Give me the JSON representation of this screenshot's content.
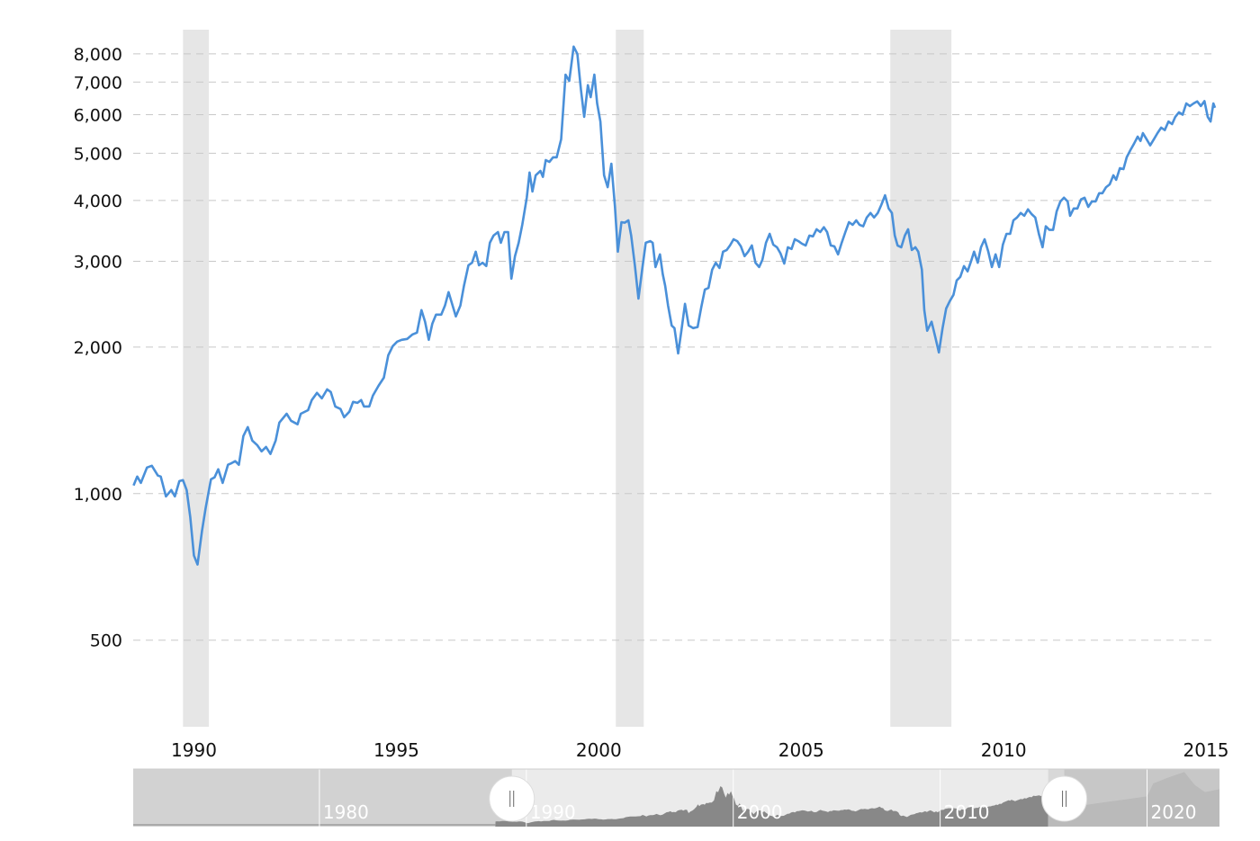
{
  "chart_data": {
    "type": "line",
    "title": "",
    "xlabel": "",
    "ylabel": "",
    "y_scale": "log",
    "xlim": [
      1988.5,
      2015.22
    ],
    "ylim": [
      332,
      8970
    ],
    "grid": {
      "horizontal": true,
      "style": "dashed"
    },
    "y_ticks": [
      500,
      1000,
      2000,
      3000,
      4000,
      5000,
      6000,
      7000,
      8000
    ],
    "y_tick_labels": [
      "500",
      "1,000",
      "2,000",
      "3,000",
      "4,000",
      "5,000",
      "6,000",
      "7,000",
      "8,000"
    ],
    "x_ticks": [
      1990,
      1995,
      2000,
      2005,
      2010,
      2015
    ],
    "x_tick_labels": [
      "1990",
      "1995",
      "2000",
      "2005",
      "2010",
      "2015"
    ],
    "line_color": "#4a90d9",
    "band_color": "#e6e6e6",
    "shaded_bands": [
      [
        1989.73,
        1990.37
      ],
      [
        2000.42,
        2001.11
      ],
      [
        2007.2,
        2008.71
      ]
    ],
    "series": [
      {
        "points": [
          [
            1988.51,
            1039
          ],
          [
            1988.6,
            1084
          ],
          [
            1988.69,
            1052
          ],
          [
            1988.84,
            1131
          ],
          [
            1988.96,
            1141
          ],
          [
            1989.11,
            1089
          ],
          [
            1989.18,
            1084
          ],
          [
            1989.31,
            987
          ],
          [
            1989.44,
            1017
          ],
          [
            1989.53,
            987
          ],
          [
            1989.64,
            1061
          ],
          [
            1989.73,
            1066
          ],
          [
            1989.82,
            1017
          ],
          [
            1989.91,
            895
          ],
          [
            1990.0,
            746
          ],
          [
            1990.09,
            715
          ],
          [
            1990.2,
            840
          ],
          [
            1990.29,
            934
          ],
          [
            1990.42,
            1070
          ],
          [
            1990.51,
            1080
          ],
          [
            1990.6,
            1122
          ],
          [
            1990.71,
            1052
          ],
          [
            1990.84,
            1146
          ],
          [
            1990.93,
            1155
          ],
          [
            1991.02,
            1166
          ],
          [
            1991.11,
            1146
          ],
          [
            1991.22,
            1313
          ],
          [
            1991.33,
            1370
          ],
          [
            1991.44,
            1285
          ],
          [
            1991.56,
            1258
          ],
          [
            1991.67,
            1221
          ],
          [
            1991.78,
            1247
          ],
          [
            1991.89,
            1206
          ],
          [
            1992.02,
            1285
          ],
          [
            1992.11,
            1399
          ],
          [
            1992.29,
            1459
          ],
          [
            1992.4,
            1411
          ],
          [
            1992.56,
            1388
          ],
          [
            1992.64,
            1459
          ],
          [
            1992.82,
            1484
          ],
          [
            1992.91,
            1556
          ],
          [
            1993.04,
            1610
          ],
          [
            1993.16,
            1569
          ],
          [
            1993.29,
            1637
          ],
          [
            1993.38,
            1617
          ],
          [
            1993.49,
            1510
          ],
          [
            1993.62,
            1492
          ],
          [
            1993.71,
            1435
          ],
          [
            1993.84,
            1473
          ],
          [
            1993.93,
            1543
          ],
          [
            1994.04,
            1536
          ],
          [
            1994.13,
            1556
          ],
          [
            1994.2,
            1510
          ],
          [
            1994.33,
            1510
          ],
          [
            1994.42,
            1589
          ],
          [
            1994.56,
            1665
          ],
          [
            1994.69,
            1730
          ],
          [
            1994.8,
            1923
          ],
          [
            1994.91,
            2009
          ],
          [
            1995.02,
            2052
          ],
          [
            1995.13,
            2069
          ],
          [
            1995.27,
            2078
          ],
          [
            1995.4,
            2123
          ],
          [
            1995.51,
            2141
          ],
          [
            1995.62,
            2381
          ],
          [
            1995.71,
            2254
          ],
          [
            1995.8,
            2069
          ],
          [
            1995.89,
            2235
          ],
          [
            1995.98,
            2331
          ],
          [
            1996.11,
            2331
          ],
          [
            1996.2,
            2432
          ],
          [
            1996.29,
            2593
          ],
          [
            1996.47,
            2311
          ],
          [
            1996.58,
            2432
          ],
          [
            1996.67,
            2671
          ],
          [
            1996.78,
            2944
          ],
          [
            1996.87,
            2980
          ],
          [
            1996.96,
            3139
          ],
          [
            1997.04,
            2944
          ],
          [
            1997.13,
            2980
          ],
          [
            1997.22,
            2933
          ],
          [
            1997.31,
            3274
          ],
          [
            1997.4,
            3388
          ],
          [
            1997.51,
            3444
          ],
          [
            1997.58,
            3274
          ],
          [
            1997.67,
            3444
          ],
          [
            1997.76,
            3444
          ],
          [
            1997.84,
            2763
          ],
          [
            1997.93,
            3073
          ],
          [
            1998.02,
            3274
          ],
          [
            1998.11,
            3566
          ],
          [
            1998.22,
            4052
          ],
          [
            1998.29,
            4565
          ],
          [
            1998.36,
            4174
          ],
          [
            1998.44,
            4505
          ],
          [
            1998.56,
            4600
          ],
          [
            1998.62,
            4470
          ],
          [
            1998.69,
            4840
          ],
          [
            1998.78,
            4800
          ],
          [
            1998.87,
            4905
          ],
          [
            1998.96,
            4905
          ],
          [
            1999.07,
            5342
          ],
          [
            1999.18,
            7250
          ],
          [
            1999.27,
            7040
          ],
          [
            1999.38,
            8280
          ],
          [
            1999.47,
            8000
          ],
          [
            1999.56,
            6750
          ],
          [
            1999.64,
            5940
          ],
          [
            1999.73,
            6900
          ],
          [
            1999.8,
            6520
          ],
          [
            1999.89,
            7250
          ],
          [
            1999.96,
            6330
          ],
          [
            2000.04,
            5810
          ],
          [
            2000.13,
            4505
          ],
          [
            2000.22,
            4260
          ],
          [
            2000.31,
            4760
          ],
          [
            2000.4,
            3880
          ],
          [
            2000.47,
            3139
          ],
          [
            2000.56,
            3610
          ],
          [
            2000.64,
            3600
          ],
          [
            2000.73,
            3640
          ],
          [
            2000.8,
            3388
          ],
          [
            2000.89,
            2944
          ],
          [
            2000.98,
            2515
          ],
          [
            2001.07,
            2884
          ],
          [
            2001.16,
            3274
          ],
          [
            2001.27,
            3300
          ],
          [
            2001.33,
            3274
          ],
          [
            2001.4,
            2920
          ],
          [
            2001.51,
            3100
          ],
          [
            2001.58,
            2823
          ],
          [
            2001.64,
            2671
          ],
          [
            2001.71,
            2432
          ],
          [
            2001.8,
            2214
          ],
          [
            2001.87,
            2187
          ],
          [
            2001.96,
            1941
          ],
          [
            2002.04,
            2160
          ],
          [
            2002.13,
            2453
          ],
          [
            2002.22,
            2214
          ],
          [
            2002.33,
            2187
          ],
          [
            2002.44,
            2198
          ],
          [
            2002.53,
            2410
          ],
          [
            2002.62,
            2625
          ],
          [
            2002.71,
            2645
          ],
          [
            2002.8,
            2884
          ],
          [
            2002.89,
            2980
          ],
          [
            2002.98,
            2907
          ],
          [
            2003.07,
            3139
          ],
          [
            2003.16,
            3165
          ],
          [
            2003.24,
            3233
          ],
          [
            2003.33,
            3330
          ],
          [
            2003.42,
            3300
          ],
          [
            2003.51,
            3220
          ],
          [
            2003.6,
            3073
          ],
          [
            2003.69,
            3139
          ],
          [
            2003.78,
            3233
          ],
          [
            2003.87,
            2980
          ],
          [
            2003.96,
            2920
          ],
          [
            2004.04,
            3020
          ],
          [
            2004.13,
            3274
          ],
          [
            2004.22,
            3416
          ],
          [
            2004.31,
            3246
          ],
          [
            2004.4,
            3206
          ],
          [
            2004.49,
            3112
          ],
          [
            2004.58,
            2968
          ],
          [
            2004.67,
            3206
          ],
          [
            2004.76,
            3180
          ],
          [
            2004.84,
            3330
          ],
          [
            2004.93,
            3300
          ],
          [
            2005.02,
            3260
          ],
          [
            2005.11,
            3233
          ],
          [
            2005.2,
            3388
          ],
          [
            2005.29,
            3375
          ],
          [
            2005.38,
            3490
          ],
          [
            2005.47,
            3444
          ],
          [
            2005.56,
            3525
          ],
          [
            2005.64,
            3444
          ],
          [
            2005.73,
            3233
          ],
          [
            2005.82,
            3220
          ],
          [
            2005.91,
            3100
          ],
          [
            2006.0,
            3274
          ],
          [
            2006.09,
            3444
          ],
          [
            2006.18,
            3610
          ],
          [
            2006.27,
            3566
          ],
          [
            2006.36,
            3640
          ],
          [
            2006.44,
            3566
          ],
          [
            2006.53,
            3540
          ],
          [
            2006.62,
            3690
          ],
          [
            2006.71,
            3770
          ],
          [
            2006.8,
            3690
          ],
          [
            2006.89,
            3770
          ],
          [
            2006.98,
            3920
          ],
          [
            2007.07,
            4100
          ],
          [
            2007.16,
            3850
          ],
          [
            2007.24,
            3770
          ],
          [
            2007.31,
            3388
          ],
          [
            2007.38,
            3233
          ],
          [
            2007.47,
            3206
          ],
          [
            2007.56,
            3388
          ],
          [
            2007.64,
            3490
          ],
          [
            2007.73,
            3165
          ],
          [
            2007.82,
            3206
          ],
          [
            2007.89,
            3139
          ],
          [
            2007.98,
            2884
          ],
          [
            2008.04,
            2381
          ],
          [
            2008.11,
            2160
          ],
          [
            2008.22,
            2254
          ],
          [
            2008.31,
            2097
          ],
          [
            2008.4,
            1950
          ],
          [
            2008.49,
            2187
          ],
          [
            2008.58,
            2400
          ],
          [
            2008.67,
            2485
          ],
          [
            2008.76,
            2560
          ],
          [
            2008.84,
            2740
          ],
          [
            2008.93,
            2787
          ],
          [
            2009.02,
            2933
          ],
          [
            2009.11,
            2860
          ],
          [
            2009.2,
            3010
          ],
          [
            2009.27,
            3139
          ],
          [
            2009.36,
            2980
          ],
          [
            2009.44,
            3206
          ],
          [
            2009.53,
            3330
          ],
          [
            2009.62,
            3139
          ],
          [
            2009.71,
            2920
          ],
          [
            2009.8,
            3100
          ],
          [
            2009.89,
            2920
          ],
          [
            2009.98,
            3246
          ],
          [
            2010.07,
            3416
          ],
          [
            2010.16,
            3416
          ],
          [
            2010.24,
            3640
          ],
          [
            2010.33,
            3690
          ],
          [
            2010.42,
            3770
          ],
          [
            2010.51,
            3720
          ],
          [
            2010.6,
            3835
          ],
          [
            2010.69,
            3750
          ],
          [
            2010.78,
            3690
          ],
          [
            2010.87,
            3416
          ],
          [
            2010.96,
            3206
          ],
          [
            2011.04,
            3540
          ],
          [
            2011.13,
            3480
          ],
          [
            2011.22,
            3480
          ],
          [
            2011.31,
            3800
          ],
          [
            2011.4,
            3980
          ],
          [
            2011.49,
            4052
          ],
          [
            2011.58,
            3980
          ],
          [
            2011.64,
            3720
          ],
          [
            2011.73,
            3850
          ],
          [
            2011.82,
            3850
          ],
          [
            2011.91,
            4020
          ],
          [
            2012.0,
            4052
          ],
          [
            2012.09,
            3880
          ],
          [
            2012.18,
            3980
          ],
          [
            2012.27,
            3980
          ],
          [
            2012.36,
            4140
          ],
          [
            2012.44,
            4140
          ],
          [
            2012.53,
            4260
          ],
          [
            2012.62,
            4315
          ],
          [
            2012.71,
            4505
          ],
          [
            2012.78,
            4410
          ],
          [
            2012.87,
            4660
          ],
          [
            2012.96,
            4640
          ],
          [
            2013.04,
            4905
          ],
          [
            2013.13,
            5075
          ],
          [
            2013.22,
            5230
          ],
          [
            2013.31,
            5410
          ],
          [
            2013.38,
            5300
          ],
          [
            2013.44,
            5500
          ],
          [
            2013.53,
            5342
          ],
          [
            2013.62,
            5190
          ],
          [
            2013.71,
            5342
          ],
          [
            2013.8,
            5500
          ],
          [
            2013.89,
            5645
          ],
          [
            2013.98,
            5580
          ],
          [
            2014.07,
            5810
          ],
          [
            2014.16,
            5740
          ],
          [
            2014.24,
            5940
          ],
          [
            2014.33,
            6070
          ],
          [
            2014.42,
            6000
          ],
          [
            2014.51,
            6330
          ],
          [
            2014.6,
            6250
          ],
          [
            2014.69,
            6330
          ],
          [
            2014.78,
            6390
          ],
          [
            2014.87,
            6250
          ],
          [
            2014.96,
            6400
          ],
          [
            2015.04,
            5940
          ],
          [
            2015.11,
            5810
          ],
          [
            2015.18,
            6330
          ],
          [
            2015.22,
            6200
          ]
        ]
      }
    ],
    "navigator": {
      "labels": [
        "1980",
        "1990",
        "2000",
        "2010",
        "2020"
      ],
      "label_years": [
        1980,
        1990,
        2000,
        2010,
        2020
      ],
      "range": [
        1971,
        2023.5
      ],
      "selected": [
        1989.3,
        2016.0
      ],
      "handle_icon": "grip-lines-icon"
    }
  }
}
